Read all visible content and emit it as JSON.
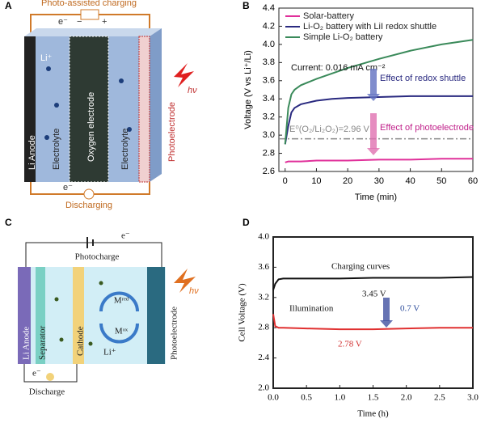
{
  "panels": {
    "a": {
      "label": "A",
      "texts": [
        "Photo-assisted charging",
        "e⁻",
        "−",
        "+",
        "Li⁺",
        "Li Anode",
        "Electrolyte",
        "Oxygen electrode",
        "Electrolyte",
        "Photoelectrode",
        "hν",
        "e⁻",
        "Discharging"
      ]
    },
    "c": {
      "label": "C",
      "texts": [
        "e⁻",
        "Photocharge",
        "Li Anode",
        "Separator",
        "Cathode",
        "Mʳᵉᵈ",
        "Mᵒˣ",
        "Li⁺",
        "Photoelectrode",
        "hν",
        "e⁻",
        "Discharge"
      ]
    }
  },
  "chart_data": [
    {
      "type": "line",
      "panel_label": "B",
      "xlabel": "Time (min)",
      "ylabel": "Voltage (V vs Li⁺/Li)",
      "x": [
        0,
        1,
        2,
        3,
        5,
        10,
        15,
        20,
        30,
        40,
        50,
        60
      ],
      "series": [
        {
          "name": "Solar-battery",
          "color": "#e0309a",
          "values": [
            2.7,
            2.71,
            2.71,
            2.71,
            2.71,
            2.72,
            2.72,
            2.72,
            2.73,
            2.73,
            2.74,
            2.74
          ]
        },
        {
          "name": "Li-O₂ battery with LiI redox shuttle",
          "color": "#2a2a80",
          "values": [
            2.9,
            3.1,
            3.25,
            3.3,
            3.34,
            3.38,
            3.4,
            3.41,
            3.42,
            3.43,
            3.43,
            3.43
          ]
        },
        {
          "name": "Simple Li-O₂ battery",
          "color": "#3a8a5a",
          "values": [
            2.9,
            3.3,
            3.45,
            3.5,
            3.55,
            3.62,
            3.68,
            3.74,
            3.84,
            3.93,
            4.0,
            4.05
          ]
        }
      ],
      "reference_line": {
        "value": 2.96,
        "label": "E⁰(O₂/Li₂O₂)=2.96 V",
        "color": "#888888"
      },
      "annotations": [
        "Current: 0.016 mA cm⁻²",
        "Effect of redox shuttle",
        "Effect of photoelectrode"
      ],
      "xlim": [
        -2,
        60
      ],
      "ylim": [
        2.6,
        4.4
      ],
      "xticks": [
        0,
        10,
        20,
        30,
        40,
        50,
        60
      ],
      "yticks": [
        2.6,
        2.8,
        {
          "value": 3,
          "label": "3.0"
        },
        3.2,
        3.4,
        3.6,
        3.8,
        {
          "value": 4,
          "label": "4.0"
        },
        4.2,
        4.4
      ],
      "legend": "upper left"
    },
    {
      "type": "line",
      "panel_label": "D",
      "xlabel": "Time (h)",
      "ylabel": "Cell Voltage (V)",
      "x": [
        0,
        0.03,
        0.08,
        0.15,
        0.5,
        1,
        1.5,
        2,
        2.5,
        3
      ],
      "series": [
        {
          "color": "#111111",
          "values": [
            3.3,
            3.38,
            3.44,
            3.45,
            3.45,
            3.45,
            3.46,
            3.46,
            3.46,
            3.47
          ]
        },
        {
          "color": "#e03030",
          "values": [
            2.98,
            2.82,
            2.8,
            2.8,
            2.79,
            2.78,
            2.78,
            2.79,
            2.8,
            2.8
          ]
        }
      ],
      "annotations": [
        "Charging curves",
        "3.45 V",
        "Illumination",
        "0.7 V",
        "2.78 V"
      ],
      "xlim": [
        0,
        3
      ],
      "ylim": [
        2,
        4
      ],
      "xticks": [
        {
          "value": 0,
          "label": "0.0"
        },
        0.5,
        {
          "value": 1,
          "label": "1.0"
        },
        1.5,
        {
          "value": 2,
          "label": "2.0"
        },
        2.5,
        {
          "value": 3,
          "label": "3.0"
        }
      ],
      "yticks": [
        {
          "value": 2,
          "label": "2.0"
        },
        2.4,
        2.8,
        3.2,
        3.6,
        {
          "value": 4,
          "label": "4.0"
        }
      ]
    }
  ]
}
